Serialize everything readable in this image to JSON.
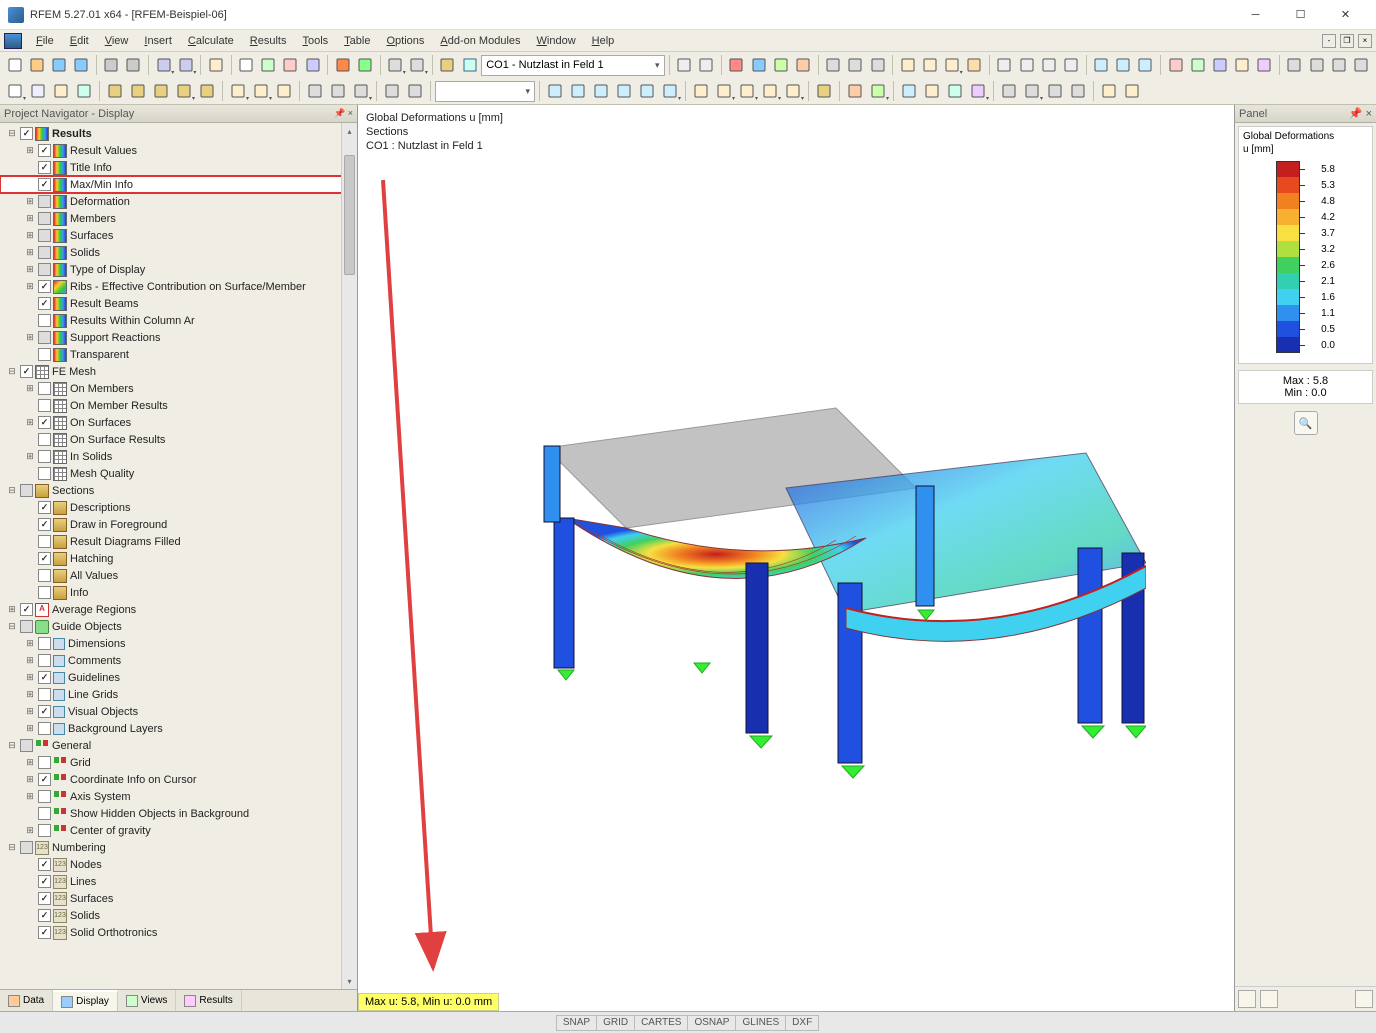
{
  "window": {
    "title": "RFEM 5.27.01 x64 - [RFEM-Beispiel-06]"
  },
  "menu": [
    "File",
    "Edit",
    "View",
    "Insert",
    "Calculate",
    "Results",
    "Tools",
    "Table",
    "Options",
    "Add-on Modules",
    "Window",
    "Help"
  ],
  "toolbar": {
    "load_combo": "CO1 - Nutzlast in Feld 1"
  },
  "navigator": {
    "title": "Project Navigator - Display",
    "tabs": [
      "Data",
      "Display",
      "Views",
      "Results"
    ],
    "active_tab": 1,
    "tree": [
      {
        "d": 0,
        "e": "-",
        "c": true,
        "i": "rainbow",
        "t": "Results",
        "bold": true
      },
      {
        "d": 1,
        "e": "+",
        "c": true,
        "i": "rainbow",
        "t": "Result Values"
      },
      {
        "d": 1,
        "e": "",
        "c": true,
        "i": "rainbow",
        "t": "Title Info"
      },
      {
        "d": 1,
        "e": "",
        "c": true,
        "i": "rainbow",
        "t": "Max/Min Info",
        "hl": true
      },
      {
        "d": 1,
        "e": "+",
        "c": "mixed",
        "i": "rainbow",
        "t": "Deformation"
      },
      {
        "d": 1,
        "e": "+",
        "c": "mixed",
        "i": "rainbow",
        "t": "Members"
      },
      {
        "d": 1,
        "e": "+",
        "c": "mixed",
        "i": "rainbow",
        "t": "Surfaces"
      },
      {
        "d": 1,
        "e": "+",
        "c": "mixed",
        "i": "rainbow",
        "t": "Solids"
      },
      {
        "d": 1,
        "e": "+",
        "c": "mixed",
        "i": "rainbow",
        "t": "Type of Display"
      },
      {
        "d": 1,
        "e": "+",
        "c": true,
        "i": "rainbow-diag",
        "t": "Ribs - Effective Contribution on Surface/Member"
      },
      {
        "d": 1,
        "e": "",
        "c": true,
        "i": "rainbow",
        "t": "Result Beams"
      },
      {
        "d": 1,
        "e": "",
        "c": false,
        "i": "rainbow",
        "t": "Results Within Column Ar"
      },
      {
        "d": 1,
        "e": "+",
        "c": "mixed",
        "i": "rainbow",
        "t": "Support Reactions"
      },
      {
        "d": 1,
        "e": "",
        "c": false,
        "i": "rainbow",
        "t": "Transparent"
      },
      {
        "d": 0,
        "e": "-",
        "c": true,
        "i": "mesh",
        "t": "FE Mesh"
      },
      {
        "d": 1,
        "e": "+",
        "c": false,
        "i": "mesh",
        "t": "On Members"
      },
      {
        "d": 1,
        "e": "",
        "c": false,
        "i": "mesh",
        "t": "On Member Results"
      },
      {
        "d": 1,
        "e": "+",
        "c": true,
        "i": "mesh",
        "t": "On Surfaces"
      },
      {
        "d": 1,
        "e": "",
        "c": false,
        "i": "mesh",
        "t": "On Surface Results"
      },
      {
        "d": 1,
        "e": "+",
        "c": false,
        "i": "mesh",
        "t": "In Solids"
      },
      {
        "d": 1,
        "e": "",
        "c": false,
        "i": "mesh",
        "t": "Mesh Quality"
      },
      {
        "d": 0,
        "e": "-",
        "c": "mixed",
        "i": "section",
        "t": "Sections"
      },
      {
        "d": 1,
        "e": "",
        "c": true,
        "i": "section",
        "t": "Descriptions"
      },
      {
        "d": 1,
        "e": "",
        "c": true,
        "i": "section",
        "t": "Draw in Foreground"
      },
      {
        "d": 1,
        "e": "",
        "c": false,
        "i": "section",
        "t": "Result Diagrams Filled"
      },
      {
        "d": 1,
        "e": "",
        "c": true,
        "i": "section",
        "t": "Hatching"
      },
      {
        "d": 1,
        "e": "",
        "c": false,
        "i": "section",
        "t": "All Values"
      },
      {
        "d": 1,
        "e": "",
        "c": false,
        "i": "section",
        "t": "Info"
      },
      {
        "d": 0,
        "e": "+",
        "c": true,
        "i": "region",
        "t": "Average Regions"
      },
      {
        "d": 0,
        "e": "-",
        "c": "mixed",
        "i": "guide",
        "t": "Guide Objects"
      },
      {
        "d": 1,
        "e": "+",
        "c": false,
        "i": "guide-sub",
        "t": "Dimensions"
      },
      {
        "d": 1,
        "e": "+",
        "c": false,
        "i": "guide-sub",
        "t": "Comments"
      },
      {
        "d": 1,
        "e": "+",
        "c": true,
        "i": "guide-sub",
        "t": "Guidelines"
      },
      {
        "d": 1,
        "e": "+",
        "c": false,
        "i": "guide-sub",
        "t": "Line Grids"
      },
      {
        "d": 1,
        "e": "+",
        "c": true,
        "i": "guide-sub",
        "t": "Visual Objects"
      },
      {
        "d": 1,
        "e": "+",
        "c": false,
        "i": "guide-sub",
        "t": "Background Layers"
      },
      {
        "d": 0,
        "e": "-",
        "c": "mixed",
        "i": "gen",
        "t": "General"
      },
      {
        "d": 1,
        "e": "+",
        "c": false,
        "i": "gen",
        "t": "Grid"
      },
      {
        "d": 1,
        "e": "+",
        "c": true,
        "i": "gen",
        "t": "Coordinate Info on Cursor"
      },
      {
        "d": 1,
        "e": "+",
        "c": false,
        "i": "gen",
        "t": "Axis System"
      },
      {
        "d": 1,
        "e": "",
        "c": false,
        "i": "gen",
        "t": "Show Hidden Objects in Background"
      },
      {
        "d": 1,
        "e": "+",
        "c": false,
        "i": "gen",
        "t": "Center of gravity"
      },
      {
        "d": 0,
        "e": "-",
        "c": "mixed",
        "i": "num",
        "t": "Numbering"
      },
      {
        "d": 1,
        "e": "",
        "c": true,
        "i": "num",
        "t": "Nodes"
      },
      {
        "d": 1,
        "e": "",
        "c": true,
        "i": "num",
        "t": "Lines"
      },
      {
        "d": 1,
        "e": "",
        "c": true,
        "i": "num",
        "t": "Surfaces"
      },
      {
        "d": 1,
        "e": "",
        "c": true,
        "i": "num",
        "t": "Solids"
      },
      {
        "d": 1,
        "e": "",
        "c": true,
        "i": "num",
        "t": "Solid Orthotronics"
      }
    ]
  },
  "viewport": {
    "info_lines": [
      "Global Deformations u [mm]",
      "Sections",
      "CO1 : Nutzlast in Feld 1"
    ],
    "status_text": "Max u: 5.8, Min u: 0.0 mm"
  },
  "panel": {
    "title": "Panel",
    "legend_title": "Global Deformations",
    "legend_unit": "u [mm]",
    "scale": [
      {
        "v": "5.8",
        "c": "#c41e1e"
      },
      {
        "v": "5.3",
        "c": "#e64a1e"
      },
      {
        "v": "4.8",
        "c": "#f08020"
      },
      {
        "v": "4.2",
        "c": "#f8b030"
      },
      {
        "v": "3.7",
        "c": "#f8e040"
      },
      {
        "v": "3.2",
        "c": "#b0e040"
      },
      {
        "v": "2.6",
        "c": "#40d060"
      },
      {
        "v": "2.1",
        "c": "#30d0b0"
      },
      {
        "v": "1.6",
        "c": "#40d0f0"
      },
      {
        "v": "1.1",
        "c": "#3090f0"
      },
      {
        "v": "0.5",
        "c": "#2050e0"
      },
      {
        "v": "0.0",
        "c": "#1830b0"
      }
    ],
    "max_label": "Max  :",
    "max_val": "5.8",
    "min_label": "Min  :",
    "min_val": "0.0"
  },
  "statusbar": {
    "cells": [
      "SNAP",
      "GRID",
      "CARTES",
      "OSNAP",
      "GLINES",
      "DXF"
    ]
  },
  "annotation": {
    "arrow_color": "#e04040",
    "highlight_color": "#d33333"
  }
}
